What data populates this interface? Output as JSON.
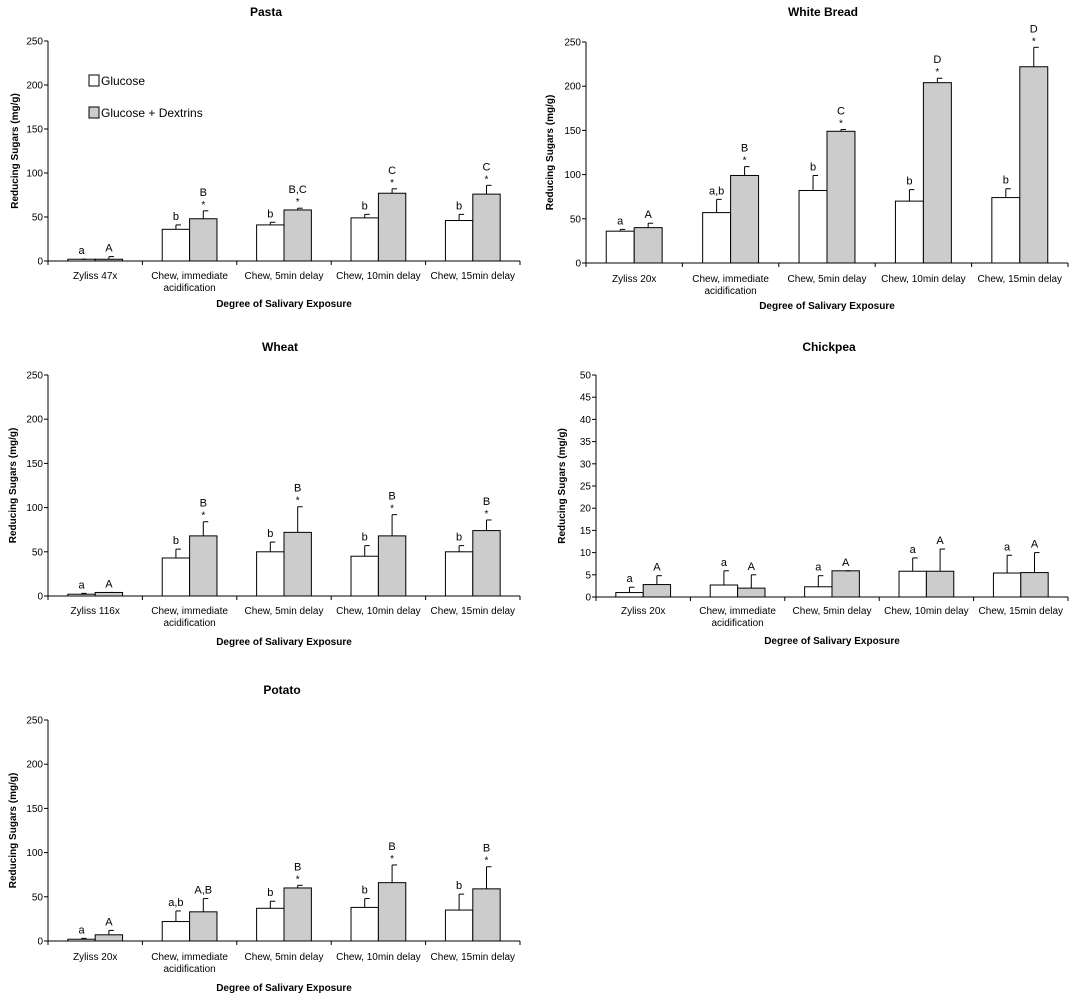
{
  "colors": {
    "glucose": "#ffffff",
    "dextrins": "#cccccc",
    "stroke": "#000000"
  },
  "legend": {
    "items": [
      {
        "label": "Glucose",
        "color": "#ffffff"
      },
      {
        "label": "Glucose + Dextrins",
        "color": "#cccccc"
      }
    ]
  },
  "chart_data": [
    {
      "type": "bar",
      "title": "Pasta",
      "xlabel": "Degree of Salivary Exposure",
      "ylabel": "Reducing Sugars (mg/g)",
      "ylim": [
        0,
        250
      ],
      "yticks": [
        0,
        50,
        100,
        150,
        200,
        250
      ],
      "categories": [
        [
          "Zyliss 47x"
        ],
        [
          "Chew, immediate",
          "acidification"
        ],
        [
          "Chew, 5min delay"
        ],
        [
          "Chew, 10min delay"
        ],
        [
          "Chew, 15min delay"
        ]
      ],
      "series": [
        {
          "name": "Glucose",
          "values": [
            2,
            36,
            41,
            49,
            46
          ],
          "errors": [
            0,
            5,
            3,
            4,
            7
          ],
          "labels": [
            "a",
            "b",
            "b",
            "b",
            "b"
          ],
          "stars": [
            false,
            false,
            false,
            false,
            false
          ]
        },
        {
          "name": "Glucose + Dextrins",
          "values": [
            2,
            48,
            58,
            77,
            76
          ],
          "errors": [
            3,
            9,
            2,
            5,
            10
          ],
          "labels": [
            "A",
            "B",
            "B,C",
            "C",
            "C"
          ],
          "stars": [
            false,
            true,
            true,
            true,
            true
          ]
        }
      ]
    },
    {
      "type": "bar",
      "title": "White Bread",
      "xlabel": "Degree of Salivary Exposure",
      "ylabel": "Reducing Sugars (mg/g)",
      "ylim": [
        0,
        250
      ],
      "yticks": [
        0,
        50,
        100,
        150,
        200,
        250
      ],
      "categories": [
        [
          "Zyliss 20x"
        ],
        [
          "Chew, immediate",
          "acidification"
        ],
        [
          "Chew, 5min delay"
        ],
        [
          "Chew, 10min delay"
        ],
        [
          "Chew, 15min delay"
        ]
      ],
      "series": [
        {
          "values": [
            36,
            57,
            82,
            70,
            74
          ],
          "errors": [
            2,
            15,
            17,
            13,
            10
          ],
          "labels": [
            "a",
            "a,b",
            "b",
            "b",
            "b"
          ],
          "stars": [
            false,
            false,
            false,
            false,
            false
          ]
        },
        {
          "values": [
            40,
            99,
            149,
            204,
            222
          ],
          "errors": [
            5,
            10,
            2,
            5,
            22
          ],
          "labels": [
            "A",
            "B",
            "C",
            "D",
            "D"
          ],
          "stars": [
            false,
            true,
            true,
            true,
            true
          ]
        }
      ]
    },
    {
      "type": "bar",
      "title": "Wheat",
      "xlabel": "Degree of Salivary Exposure",
      "ylabel": "Reducing Sugars (mg/g)",
      "ylim": [
        0,
        250
      ],
      "yticks": [
        0,
        50,
        100,
        150,
        200,
        250
      ],
      "categories": [
        [
          "Zyliss 116x"
        ],
        [
          "Chew, immediate",
          "acidification"
        ],
        [
          "Chew, 5min delay"
        ],
        [
          "Chew, 10min delay"
        ],
        [
          "Chew, 15min delay"
        ]
      ],
      "series": [
        {
          "values": [
            2,
            43,
            50,
            45,
            50
          ],
          "errors": [
            1,
            10,
            11,
            12,
            7
          ],
          "labels": [
            "a",
            "b",
            "b",
            "b",
            "b"
          ],
          "stars": [
            false,
            false,
            false,
            false,
            false
          ]
        },
        {
          "values": [
            4,
            68,
            72,
            68,
            74
          ],
          "errors": [
            0,
            16,
            29,
            24,
            12
          ],
          "labels": [
            "A",
            "B",
            "B",
            "B",
            "B"
          ],
          "stars": [
            false,
            true,
            true,
            true,
            true
          ]
        }
      ]
    },
    {
      "type": "bar",
      "title": "Chickpea",
      "xlabel": "Degree of Salivary Exposure",
      "ylabel": "Reducing Sugars (mg/g)",
      "ylim": [
        0,
        50
      ],
      "yticks": [
        0,
        5,
        10,
        15,
        20,
        25,
        30,
        35,
        40,
        45,
        50
      ],
      "categories": [
        [
          "Zyliss 20x"
        ],
        [
          "Chew, immediate",
          "acidification"
        ],
        [
          "Chew, 5min delay"
        ],
        [
          "Chew, 10min delay"
        ],
        [
          "Chew, 15min delay"
        ]
      ],
      "series": [
        {
          "values": [
            1,
            2.7,
            2.3,
            5.8,
            5.4
          ],
          "errors": [
            1.2,
            3.2,
            2.5,
            3,
            4
          ],
          "labels": [
            "a",
            "a",
            "a",
            "a",
            "a"
          ],
          "stars": [
            false,
            false,
            false,
            false,
            false
          ]
        },
        {
          "values": [
            2.8,
            2,
            5.9,
            5.8,
            5.5
          ],
          "errors": [
            2,
            3,
            0,
            5,
            4.5
          ],
          "labels": [
            "A",
            "A",
            "A",
            "A",
            "A"
          ],
          "stars": [
            false,
            false,
            false,
            false,
            false
          ]
        }
      ]
    },
    {
      "type": "bar",
      "title": "Potato",
      "xlabel": "Degree of Salivary Exposure",
      "ylabel": "Reducing Sugars (mg/g)",
      "ylim": [
        0,
        250
      ],
      "yticks": [
        0,
        50,
        100,
        150,
        200,
        250
      ],
      "categories": [
        [
          "Zyliss 20x"
        ],
        [
          "Chew, immediate",
          "acidification"
        ],
        [
          "Chew, 5min delay"
        ],
        [
          "Chew, 10min delay"
        ],
        [
          "Chew, 15min delay"
        ]
      ],
      "series": [
        {
          "values": [
            2,
            22,
            37,
            38,
            35
          ],
          "errors": [
            1,
            12,
            8,
            10,
            18
          ],
          "labels": [
            "a",
            "a,b",
            "b",
            "b",
            "b"
          ],
          "stars": [
            false,
            false,
            false,
            false,
            false
          ]
        },
        {
          "values": [
            7,
            33,
            60,
            66,
            59
          ],
          "errors": [
            5,
            15,
            3,
            20,
            25
          ],
          "labels": [
            "A",
            "A,B",
            "B",
            "B",
            "B"
          ],
          "stars": [
            false,
            false,
            true,
            true,
            true
          ]
        }
      ]
    }
  ]
}
